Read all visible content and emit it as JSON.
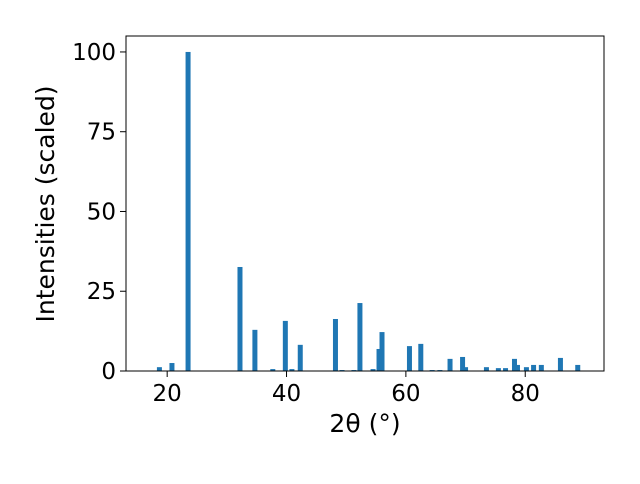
{
  "chart_data": {
    "type": "bar",
    "xlabel": "2θ (°)",
    "ylabel": "Intensities (scaled)",
    "x": [
      18.7,
      20.8,
      23.5,
      32.2,
      34.7,
      37.7,
      39.8,
      40.9,
      42.3,
      48.2,
      49.3,
      51.3,
      52.3,
      54.5,
      55.5,
      56.0,
      60.6,
      62.5,
      64.4,
      65.7,
      67.4,
      69.5,
      70.0,
      73.5,
      75.5,
      76.7,
      78.2,
      78.7,
      80.2,
      81.4,
      82.7,
      85.9,
      88.8
    ],
    "values": [
      1.2,
      2.5,
      100,
      32.6,
      12.9,
      0.6,
      15.7,
      0.6,
      8.2,
      16.3,
      0.3,
      0.3,
      21.3,
      0.6,
      6.9,
      12.2,
      7.8,
      8.5,
      0.3,
      0.3,
      3.8,
      4.4,
      1.2,
      1.2,
      0.9,
      0.9,
      3.8,
      1.9,
      1.2,
      1.9,
      1.9,
      4.1,
      1.9
    ],
    "color": "#1f77b4",
    "xlim": [
      13.1,
      93.2
    ],
    "xticks": [
      20,
      40,
      60,
      80
    ],
    "ylim": [
      0,
      105
    ],
    "yticks": [
      0,
      25,
      50,
      75,
      100
    ],
    "grid": false
  }
}
